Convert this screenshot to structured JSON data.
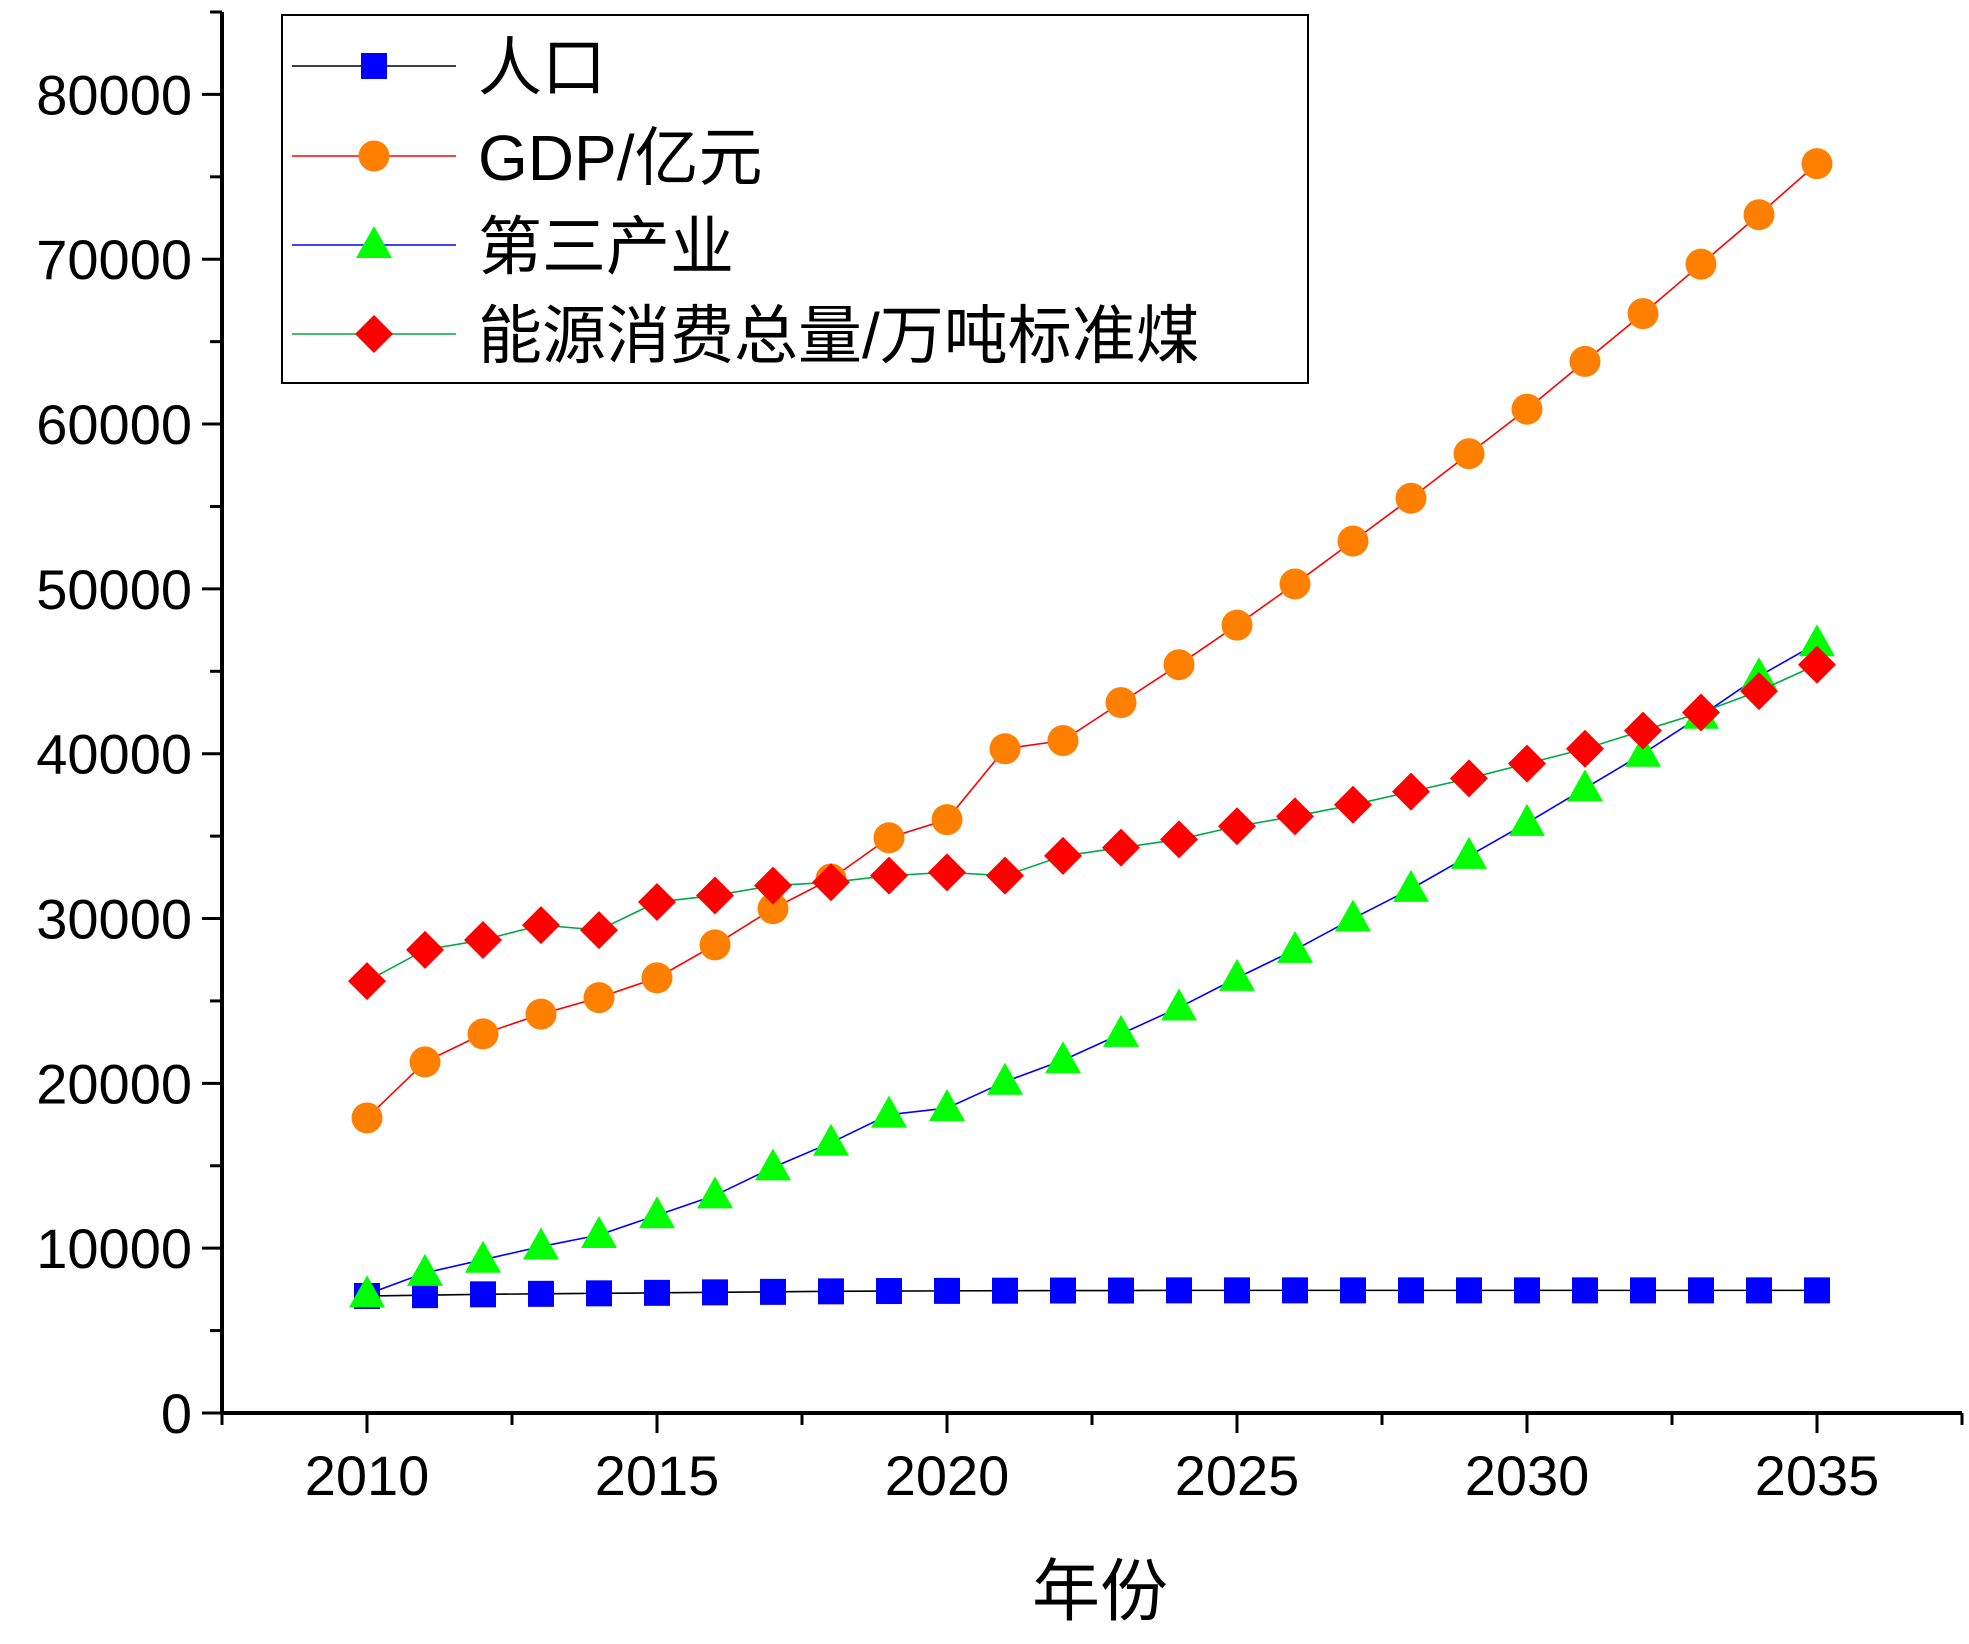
{
  "chart_data": {
    "type": "line",
    "title": "",
    "xlabel": "年份",
    "ylabel": "",
    "xlim": [
      2007.5,
      2037.5
    ],
    "ylim": [
      0,
      85000
    ],
    "x_ticks": [
      2010,
      2015,
      2020,
      2025,
      2030,
      2035
    ],
    "y_ticks": [
      0,
      10000,
      20000,
      30000,
      40000,
      50000,
      60000,
      70000,
      80000
    ],
    "legend_position": "top-left",
    "x": [
      2010,
      2011,
      2012,
      2013,
      2014,
      2015,
      2016,
      2017,
      2018,
      2019,
      2020,
      2021,
      2022,
      2023,
      2024,
      2025,
      2026,
      2027,
      2028,
      2029,
      2030,
      2031,
      2032,
      2033,
      2034,
      2035
    ],
    "series": [
      {
        "name": "人口",
        "marker": "square",
        "marker_color": "#0000ff",
        "line_color": "#000000",
        "values": [
          7100,
          7150,
          7200,
          7230,
          7260,
          7290,
          7320,
          7350,
          7380,
          7400,
          7410,
          7420,
          7430,
          7430,
          7440,
          7440,
          7440,
          7440,
          7440,
          7440,
          7440,
          7440,
          7440,
          7440,
          7440,
          7440
        ]
      },
      {
        "name": "GDP/亿元",
        "marker": "circle",
        "marker_color": "#ff8000",
        "line_color": "#ff0000",
        "values": [
          17900,
          21300,
          23000,
          24200,
          25200,
          26400,
          28400,
          30600,
          32400,
          34900,
          36000,
          40300,
          40800,
          43100,
          45400,
          47800,
          50300,
          52900,
          55500,
          58200,
          60900,
          63800,
          66700,
          69700,
          72700,
          75800
        ]
      },
      {
        "name": "第三产业",
        "marker": "triangle",
        "marker_color": "#00ff00",
        "line_color": "#0000ff",
        "values": [
          7200,
          8500,
          9300,
          10100,
          10800,
          12000,
          13200,
          14900,
          16400,
          18100,
          18500,
          20100,
          21400,
          23000,
          24600,
          26400,
          28100,
          30000,
          31800,
          33800,
          35800,
          37900,
          40000,
          42300,
          44700,
          46700
        ]
      },
      {
        "name": "能源消费总量/万吨标准煤",
        "marker": "diamond",
        "marker_color": "#ff0000",
        "line_color": "#00aa44",
        "values": [
          26200,
          28100,
          28700,
          29600,
          29300,
          31000,
          31400,
          32000,
          32200,
          32600,
          32800,
          32600,
          33800,
          34300,
          34800,
          35600,
          36200,
          36900,
          37700,
          38500,
          39400,
          40300,
          41400,
          42500,
          43800,
          45400
        ]
      }
    ]
  }
}
